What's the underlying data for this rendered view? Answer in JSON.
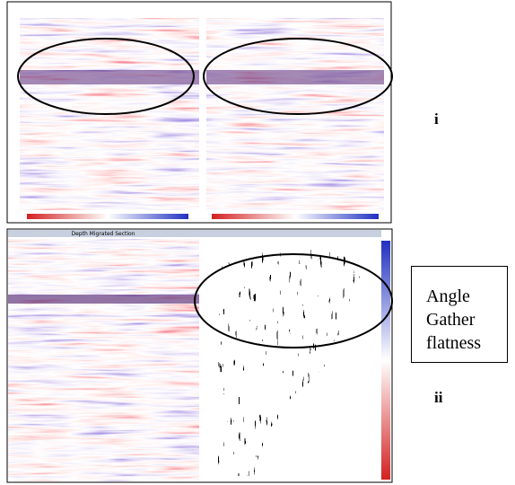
{
  "panels": [
    {
      "label": "i"
    },
    {
      "label": "ii",
      "section_title": "Depth Migrated Section"
    }
  ],
  "callout": "Angle Gather flatness"
}
